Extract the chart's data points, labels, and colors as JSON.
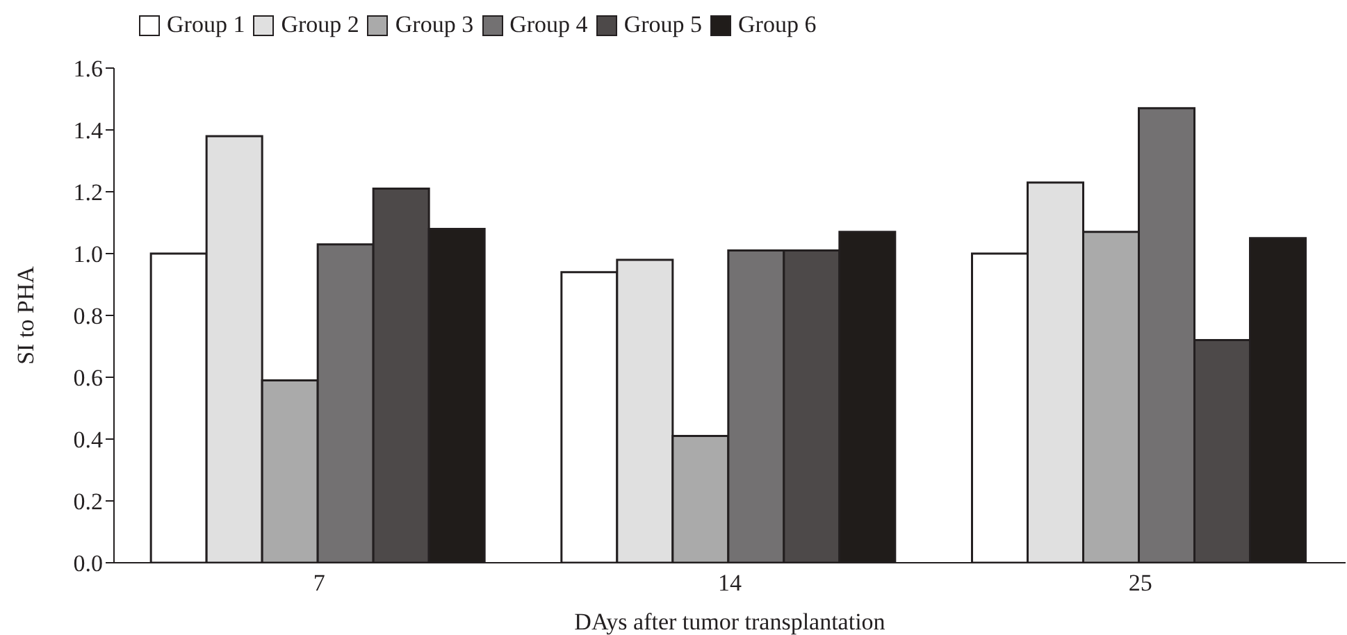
{
  "chart_data": {
    "type": "bar",
    "xlabel": "DAys after tumor transplantation",
    "ylabel": "SI to PHA",
    "categories": [
      "7",
      "14",
      "25"
    ],
    "series": [
      {
        "name": "Group 1",
        "color": "#ffffff",
        "values": [
          1.0,
          0.94,
          1.0
        ]
      },
      {
        "name": "Group 2",
        "color": "#e0e0e0",
        "values": [
          1.38,
          0.98,
          1.23
        ]
      },
      {
        "name": "Group 3",
        "color": "#aaaaaa",
        "values": [
          0.59,
          0.41,
          1.07
        ]
      },
      {
        "name": "Group 4",
        "color": "#737172",
        "values": [
          1.03,
          1.01,
          1.47
        ]
      },
      {
        "name": "Group 5",
        "color": "#4d4949",
        "values": [
          1.21,
          1.01,
          0.72
        ]
      },
      {
        "name": "Group 6",
        "color": "#201c1a",
        "values": [
          1.08,
          1.07,
          1.05
        ]
      }
    ],
    "ylim": [
      0,
      1.6
    ],
    "yticks": [
      {
        "value": 0,
        "label": "0.0"
      },
      {
        "value": 0.2,
        "label": "0.2"
      },
      {
        "value": 0.4,
        "label": "0.4"
      },
      {
        "value": 0.6,
        "label": "0.6"
      },
      {
        "value": 0.8,
        "label": "0.8"
      },
      {
        "value": 1,
        "label": "1.0"
      },
      {
        "value": 1.2,
        "label": "1.2"
      },
      {
        "value": 1.4,
        "label": "1.4"
      },
      {
        "value": 1.6,
        "label": "1.6"
      }
    ],
    "grid": false,
    "legend": "top left"
  }
}
